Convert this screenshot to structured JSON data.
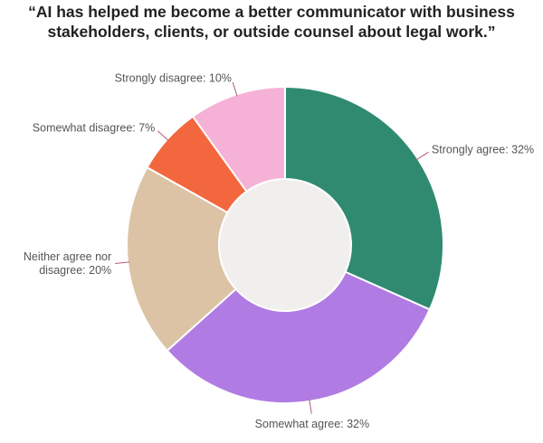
{
  "chart_data": {
    "type": "donut",
    "title": "“AI has helped me become a better communicator with business stakeholders, clients, or outside counsel about legal work.”",
    "categories": [
      "Strongly agree",
      "Somewhat agree",
      "Neither agree nor disagree",
      "Somewhat disagree",
      "Strongly disagree"
    ],
    "values": [
      32,
      32,
      20,
      7,
      10
    ],
    "value_labels": [
      "Strongly agree: 32%",
      "Somewhat agree: 32%",
      "Neither agree nor disagree: 20%",
      "Somewhat disagree: 7%",
      "Strongly disagree: 10%"
    ],
    "colors": [
      "#2f8a6f",
      "#b07be2",
      "#dcc3a6",
      "#f2673d",
      "#f5b1d6"
    ]
  }
}
